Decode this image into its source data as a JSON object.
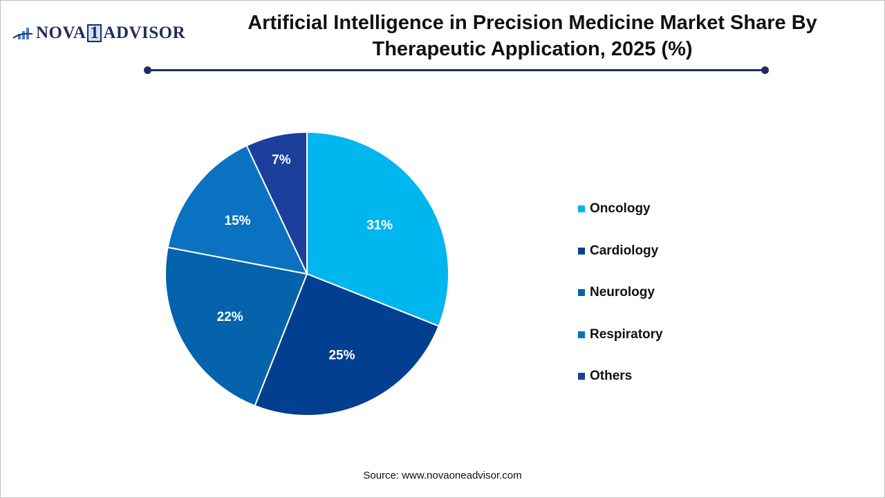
{
  "logo": {
    "text": "NOVA 1 ADVISOR"
  },
  "title": "Artificial Intelligence in Precision Medicine Market Share By Therapeutic Application, 2025 (%)",
  "source": "Source: www.novaoneadvisor.com",
  "chart_data": {
    "type": "pie",
    "title": "Artificial Intelligence in Precision Medicine Market Share By Therapeutic Application, 2025 (%)",
    "categories": [
      "Oncology",
      "Cardiology",
      "Neurology",
      "Respiratory",
      "Others"
    ],
    "values": [
      31,
      25,
      22,
      15,
      7
    ],
    "labels": [
      "31%",
      "25%",
      "22%",
      "15%",
      "7%"
    ],
    "colors": [
      "#00B6EF",
      "#033F91",
      "#0563AC",
      "#0B72C2",
      "#1C3F9C"
    ],
    "start": "top, clockwise",
    "legend_position": "right"
  }
}
